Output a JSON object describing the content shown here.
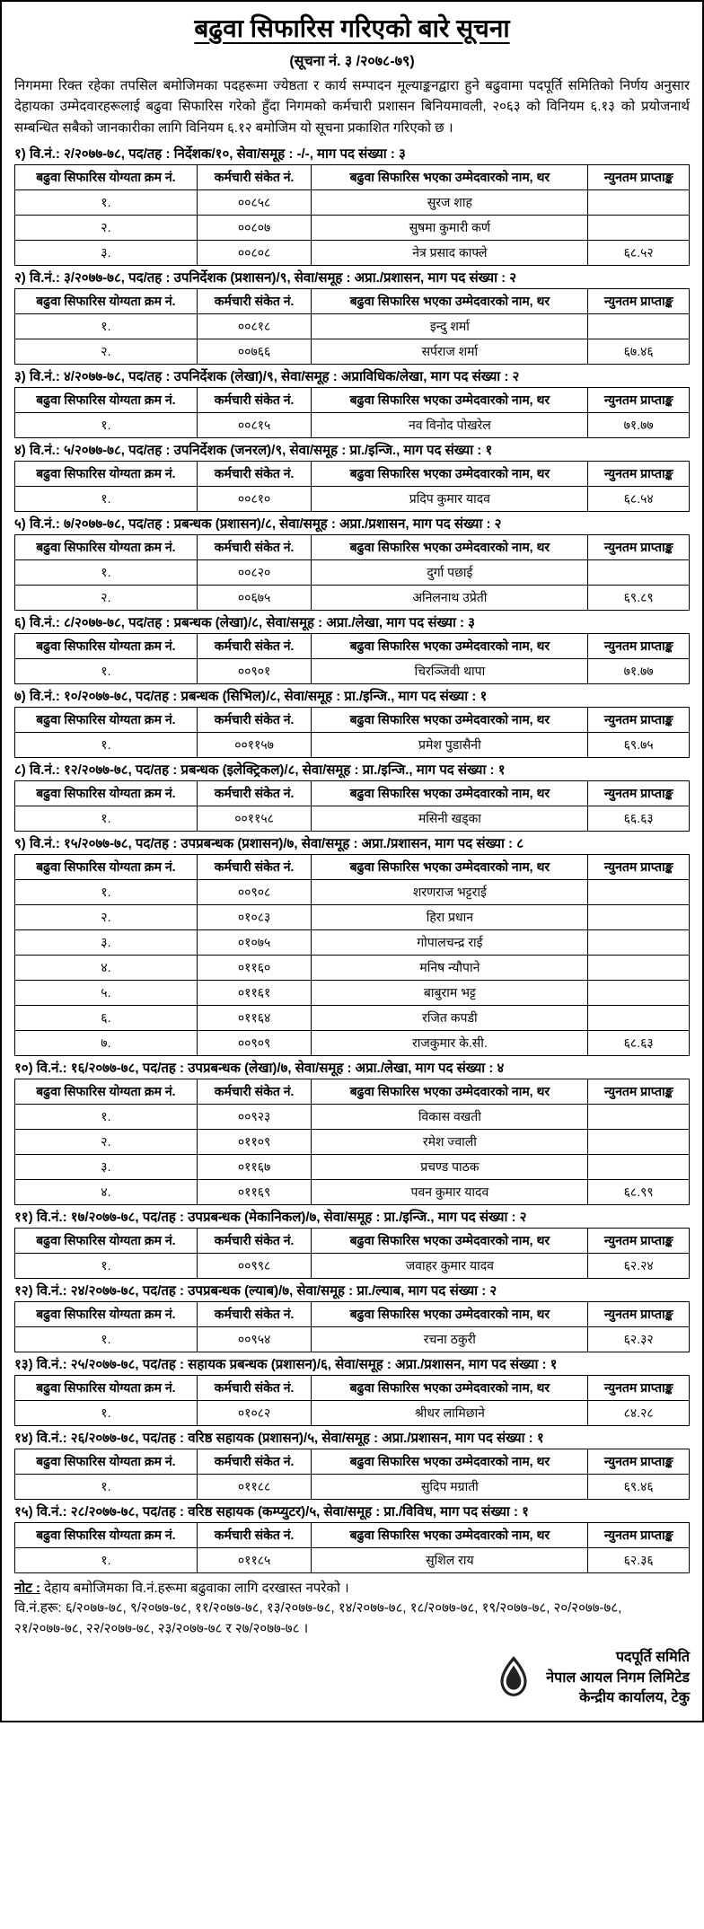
{
  "title": "बढुवा सिफारिस गरिएको बारे सूचना",
  "subtitle": "(सूचना नं. ३ /२०७८-७९)",
  "intro": "निगममा रिक्त रहेका तपसिल बमोजिमका पदहरूमा ज्येष्ठता र कार्य सम्पादन मूल्याङ्कनद्वारा हुने बढुवामा पदपूर्ति समितिको निर्णय अनुसार देहायका उम्मेदवारहरूलाई बढुवा सिफारिस गरेको हुँदा निगमको कर्मचारी प्रशासन बिनियमावली, २०६३ को विनियम ६.१३ को प्रयोजनार्थ सम्बन्धित सबैको जानकारीका लागि विनियम ६.१२ बमोजिम यो सूचना प्रकाशित गरिएको छ ।",
  "headers": {
    "c1": "बढुवा सिफारिस योग्यता क्रम नं.",
    "c2": "कर्मचारी संकेत नं.",
    "c3": "बढुवा सिफारिस भएका उम्मेदवारको नाम, थर",
    "c4": "न्युनतम प्राप्ताङ्क"
  },
  "sections": [
    {
      "head": "१) वि.नं.: २/२०७७-७८, पद/तह : निर्देशक/१०, सेवा/समूह : -/-, माग पद संख्या : ३",
      "rows": [
        [
          "१.",
          "००८५८",
          "सुरज शाह",
          ""
        ],
        [
          "२.",
          "००८०७",
          "सुषमा कुमारी कर्ण",
          ""
        ],
        [
          "३.",
          "००८०८",
          "नेत्र प्रसाद काफ्ले",
          "६८.५२"
        ]
      ]
    },
    {
      "head": "२) वि.नं.: ३/२०७७-७८, पद/तह : उपनिर्देशक (प्रशासन)/९, सेवा/समूह : अप्रा./प्रशासन, माग पद संख्या : २",
      "rows": [
        [
          "१.",
          "००८१८",
          "इन्दु शर्मा",
          ""
        ],
        [
          "२.",
          "००७६६",
          "सर्पराज शर्मा",
          "६७.४६"
        ]
      ]
    },
    {
      "head": "३) वि.नं.: ४/२०७७-७८, पद/तह : उपनिर्देशक (लेखा)/९, सेवा/समूह : अप्राविधिक/लेखा, माग पद संख्या : २",
      "rows": [
        [
          "१.",
          "००८१५",
          "नव विनोद पोखरेल",
          "७१.७७"
        ]
      ]
    },
    {
      "head": "४) वि.नं.: ५/२०७७-७८, पद/तह : उपनिर्देशक (जनरल)/९, सेवा/समूह : प्रा./इन्जि., माग पद संख्या : १",
      "rows": [
        [
          "१.",
          "००८१०",
          "प्रदिप कुमार यादव",
          "६८.५४"
        ]
      ]
    },
    {
      "head": "५) वि.नं.: ७/२०७७-७८, पद/तह : प्रबन्धक (प्रशासन)/८, सेवा/समूह : अप्रा./प्रशासन, माग पद संख्या : २",
      "rows": [
        [
          "१.",
          "००८२०",
          "दुर्गा पछाई",
          ""
        ],
        [
          "२.",
          "००६७५",
          "अनिलनाथ उप्रेती",
          "६९.८९"
        ]
      ]
    },
    {
      "head": "६) वि.नं.: ८/२०७७-७८, पद/तह : प्रबन्धक (लेखा)/८, सेवा/समूह : अप्रा./लेखा, माग पद संख्या : ३",
      "rows": [
        [
          "१.",
          "००९०१",
          "चिरञ्जिवी थापा",
          "७१.७७"
        ]
      ]
    },
    {
      "head": "७) वि.नं.: १०/२०७७-७८, पद/तह : प्रबन्धक (सिभिल)/८, सेवा/समूह : प्रा./इन्जि., माग पद संख्या : १",
      "rows": [
        [
          "१.",
          "००११५७",
          "प्रमेश पुडासैनी",
          "६९.७५"
        ]
      ]
    },
    {
      "head": "८) वि.नं.: १२/२०७७-७८, पद/तह : प्रबन्धक (इलेक्ट्रिकल)/८, सेवा/समूह : प्रा./इन्जि., माग पद संख्या : १",
      "rows": [
        [
          "१.",
          "००११५८",
          "मसिनी खड्का",
          "६६.६३"
        ]
      ]
    },
    {
      "head": "९) वि.नं.: १५/२०७७-७८, पद/तह : उपप्रबन्धक (प्रशासन)/७, सेवा/समूह : अप्रा./प्रशासन, माग पद संख्या : ८",
      "rows": [
        [
          "१.",
          "००९०८",
          "शरणराज भट्टराई",
          ""
        ],
        [
          "२.",
          "०१०८३",
          "हिरा प्रधान",
          ""
        ],
        [
          "३.",
          "०१०७५",
          "गोपालचन्द्र राई",
          ""
        ],
        [
          "४.",
          "०११६०",
          "मनिष न्यौपाने",
          ""
        ],
        [
          "५.",
          "०११६१",
          "बाबुराम भट्ट",
          ""
        ],
        [
          "६.",
          "०११६४",
          "रजित कपडी",
          ""
        ],
        [
          "७.",
          "००९०९",
          "राजकुमार के.सी.",
          "६८.६३"
        ]
      ]
    },
    {
      "head": "१०) वि.नं.: १६/२०७७-७८, पद/तह : उपप्रबन्धक (लेखा)/७, सेवा/समूह : अप्रा./लेखा, माग पद संख्या : ४",
      "rows": [
        [
          "१.",
          "००९२३",
          "विकास वखती",
          ""
        ],
        [
          "२.",
          "०११०९",
          "रमेश ज्वाली",
          ""
        ],
        [
          "३.",
          "०११६७",
          "प्रचण्ड पाठक",
          ""
        ],
        [
          "४.",
          "०११६९",
          "पवन कुमार यादव",
          "६८.९९"
        ]
      ]
    },
    {
      "head": "११) वि.नं.: १७/२०७७-७८, पद/तह : उपप्रबन्धक (मेकानिकल)/७, सेवा/समूह : प्रा./इन्जि., माग पद संख्या : २",
      "rows": [
        [
          "१.",
          "००९९८",
          "जवाहर कुमार यादव",
          "६२.२४"
        ]
      ]
    },
    {
      "head": "१२) वि.नं.: २४/२०७७-७८, पद/तह : उपप्रबन्धक (ल्याब)/७, सेवा/समूह : प्रा./ल्याब, माग पद संख्या : २",
      "rows": [
        [
          "१.",
          "००९५४",
          "रचना ठकुरी",
          "६२.३२"
        ]
      ]
    },
    {
      "head": "१३) वि.नं.: २५/२०७७-७८, पद/तह : सहायक प्रबन्धक (प्रशासन)/६, सेवा/समूह : अप्रा./प्रशासन, माग पद संख्या : १",
      "rows": [
        [
          "१.",
          "०१०८२",
          "श्रीधर लामिछाने",
          "८४.२८"
        ]
      ]
    },
    {
      "head": "१४) वि.नं.: २६/२०७७-७८, पद/तह : वरिष्ठ सहायक (प्रशासन)/५, सेवा/समूह : अप्रा./प्रशासन, माग पद संख्या : १",
      "rows": [
        [
          "१.",
          "०११८८",
          "सुदिप मग्राती",
          "६९.४६"
        ]
      ]
    },
    {
      "head": "१५) वि.नं.: २८/२०७७-७८, पद/तह : वरिष्ठ सहायक (कम्प्युटर)/५, सेवा/समूह : प्रा./विविध, माग पद संख्या : १",
      "rows": [
        [
          "१.",
          "०११८५",
          "सुशिल राय",
          "६२.३६"
        ]
      ]
    }
  ],
  "note_label": "नोट :",
  "note_body": "देहाय बमोजिमका वि.नं.हरूमा बढुवाका लागि दरखास्त नपरेको ।",
  "note_list": "वि.नं.हरू: ६/२०७७-७८, ९/२०७७-७८, ११/२०७७-७८, १३/२०७७-७८, १४/२०७७-७८, १८/२०७७-७८, १९/२०७७-७८, २०/२०७७-७८, २१/२०७७-७८, २२/२०७७-७८, २३/२०७७-७८ र २७/२०७७-७८ ।",
  "footer": {
    "l1": "पदपूर्ति समिति",
    "l2": "नेपाल आयल निगम लिमिटेड",
    "l3": "केन्द्रीय कार्यालय, टेकु"
  }
}
